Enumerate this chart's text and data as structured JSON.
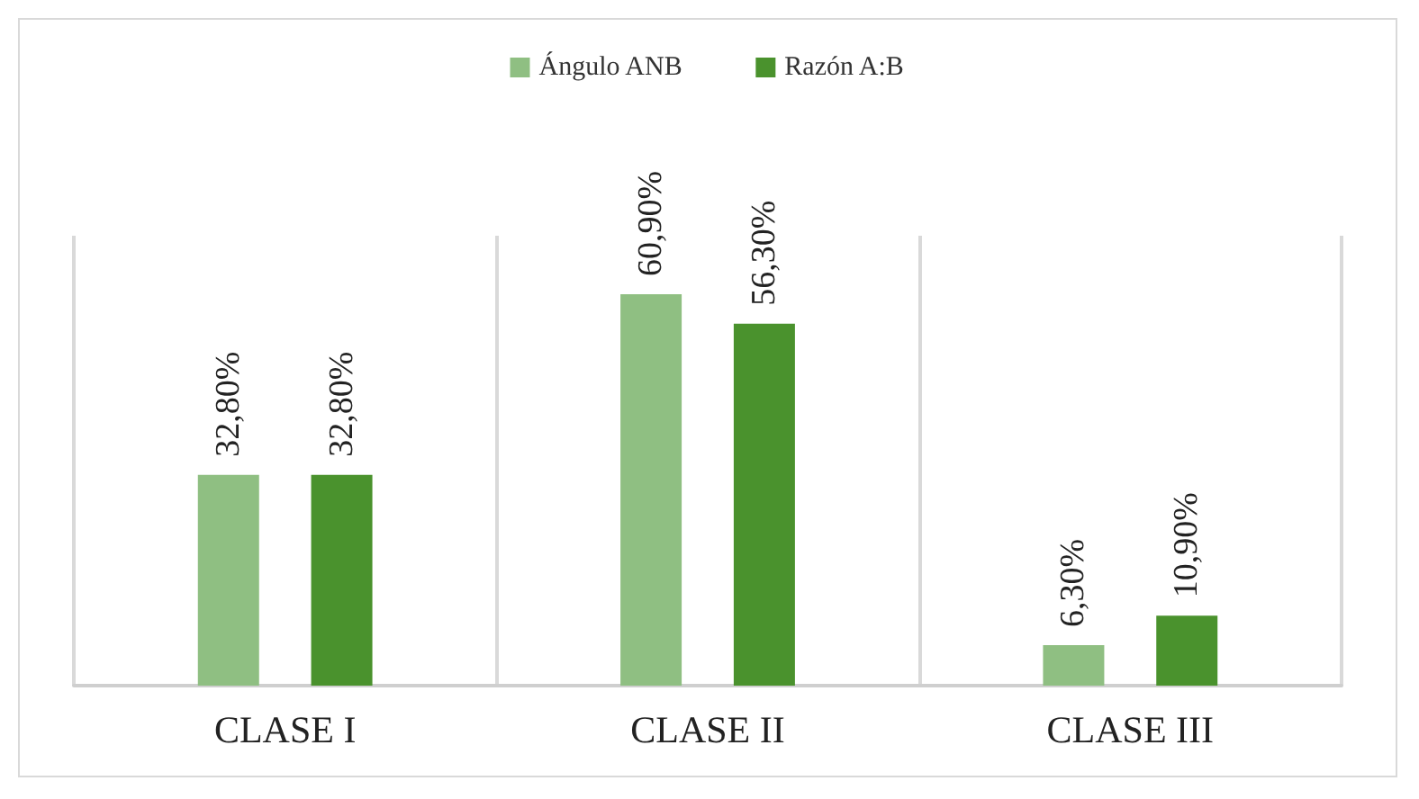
{
  "chart_data": {
    "type": "bar",
    "categories": [
      "CLASE I",
      "CLASE II",
      "CLASE III"
    ],
    "series": [
      {
        "name": "Ángulo ANB",
        "color": "#8fbf82",
        "values": [
          32.8,
          60.9,
          6.3
        ],
        "value_labels": [
          "32,80%",
          "60,90%",
          "6,30%"
        ]
      },
      {
        "name": "Razón A:B",
        "color": "#4a922d",
        "values": [
          32.8,
          56.3,
          10.9
        ],
        "value_labels": [
          "32,80%",
          "56,30%",
          "10,90%"
        ]
      }
    ],
    "legend": "top"
  }
}
